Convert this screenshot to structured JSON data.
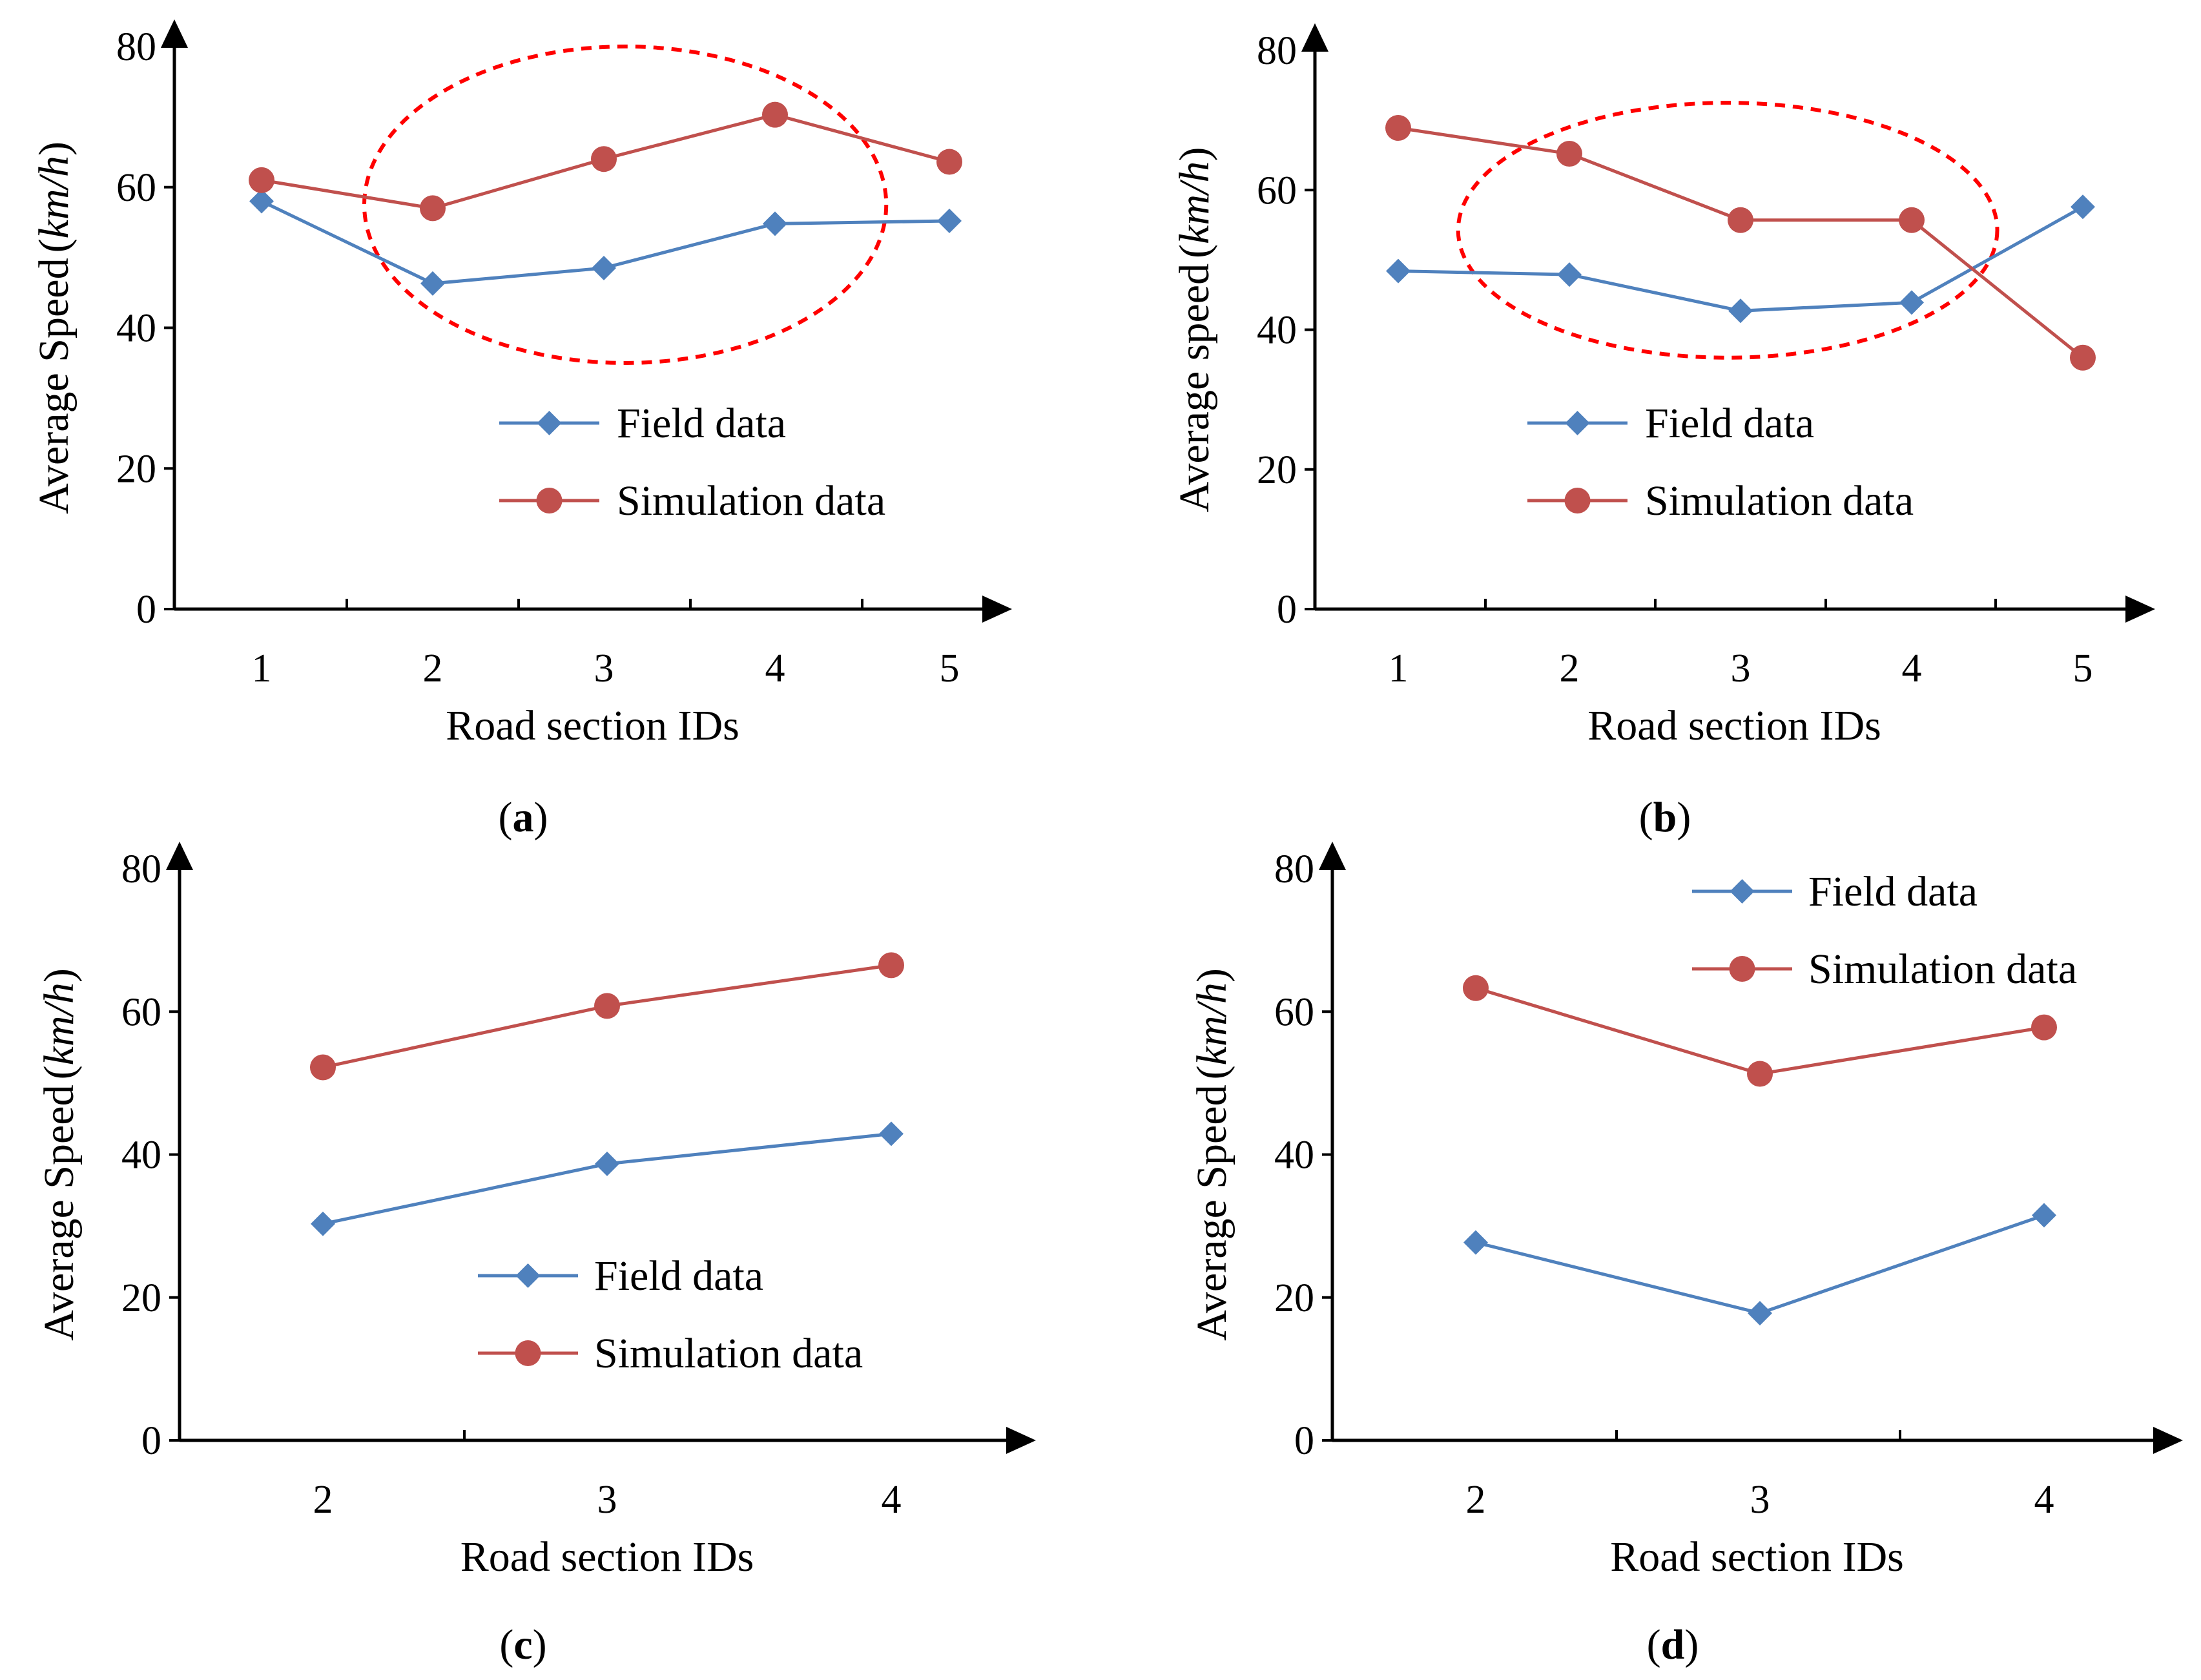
{
  "chart_data": [
    {
      "type": "line",
      "panel_label": "a",
      "categories": [
        "1",
        "2",
        "3",
        "4",
        "5"
      ],
      "x": [
        1,
        2,
        3,
        4,
        5
      ],
      "series": [
        {
          "name": "Field data",
          "values": [
            58,
            46.3,
            48.5,
            54.8,
            55.2
          ],
          "color": "#4f81bd",
          "marker": "diamond"
        },
        {
          "name": "Simulation data",
          "values": [
            61,
            57,
            64,
            70.3,
            63.6
          ],
          "color": "#c0504d",
          "marker": "circle"
        }
      ],
      "xlabel": "Road section IDs",
      "ylabel": "Average Speed",
      "yunit": "km/h",
      "ylim": [
        0,
        80
      ],
      "yticks": [
        0,
        20,
        40,
        60,
        80
      ],
      "grid": false,
      "legend_position": "center",
      "highlight_ellipse": {
        "x_range": [
          1.6,
          4.65
        ],
        "y_range": [
          35,
          80
        ],
        "color": "#ff0000",
        "style": "dashed"
      }
    },
    {
      "type": "line",
      "panel_label": "b",
      "categories": [
        "1",
        "2",
        "3",
        "4",
        "5"
      ],
      "x": [
        1,
        2,
        3,
        4,
        5
      ],
      "series": [
        {
          "name": "Field data",
          "values": [
            48.4,
            47.9,
            42.7,
            43.9,
            57.6
          ],
          "color": "#4f81bd",
          "marker": "diamond"
        },
        {
          "name": "Simulation data",
          "values": [
            68.9,
            65.2,
            55.7,
            55.7,
            36
          ],
          "color": "#c0504d",
          "marker": "circle"
        }
      ],
      "xlabel": "Road section IDs",
      "ylabel": "Average speed",
      "yunit": "km/h",
      "ylim": [
        0,
        80
      ],
      "yticks": [
        0,
        20,
        40,
        60,
        80
      ],
      "grid": false,
      "legend_position": "center",
      "highlight_ellipse": {
        "x_range": [
          1.35,
          4.5
        ],
        "y_range": [
          36,
          72.5
        ],
        "color": "#ff0000",
        "style": "dashed"
      }
    },
    {
      "type": "line",
      "panel_label": "c",
      "categories": [
        "2",
        "3",
        "4"
      ],
      "x": [
        2,
        3,
        4
      ],
      "series": [
        {
          "name": "Field data",
          "values": [
            30.3,
            38.7,
            42.9
          ],
          "color": "#4f81bd",
          "marker": "diamond"
        },
        {
          "name": "Simulation data",
          "values": [
            52.2,
            60.8,
            66.5
          ],
          "color": "#c0504d",
          "marker": "circle"
        }
      ],
      "xlabel": "Road section IDs",
      "ylabel": "Average Speed",
      "yunit": "km/h",
      "ylim": [
        0,
        80
      ],
      "yticks": [
        0,
        20,
        40,
        60,
        80
      ],
      "grid": false,
      "legend_position": "bottom-center"
    },
    {
      "type": "line",
      "panel_label": "d",
      "categories": [
        "2",
        "3",
        "4"
      ],
      "x": [
        2,
        3,
        4
      ],
      "series": [
        {
          "name": "Field data",
          "values": [
            27.7,
            17.8,
            31.5
          ],
          "color": "#4f81bd",
          "marker": "diamond"
        },
        {
          "name": "Simulation data",
          "values": [
            63.3,
            51.3,
            57.8
          ],
          "color": "#c0504d",
          "marker": "circle"
        }
      ],
      "xlabel": "Road section IDs",
      "ylabel": "Average Speed",
      "yunit": "km/h",
      "ylim": [
        0,
        80
      ],
      "yticks": [
        0,
        20,
        40,
        60,
        80
      ],
      "grid": false,
      "legend_position": "top-right"
    }
  ]
}
